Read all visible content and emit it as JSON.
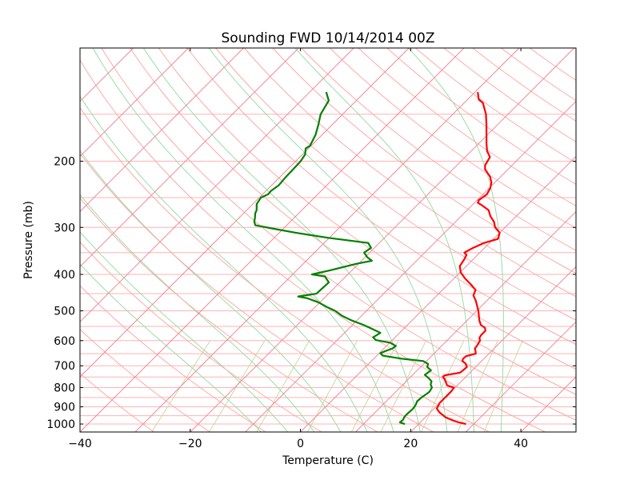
{
  "chart_data": {
    "type": "line",
    "subtype": "skew-t log-p sounding",
    "title": "Sounding FWD 10/14/2014 00Z",
    "xlabel": "Temperature (C)",
    "ylabel": "Pressure (mb)",
    "xlim": [
      -40,
      50
    ],
    "ylim": [
      1050,
      100
    ],
    "yscale": "log",
    "skew": 45,
    "grid": true,
    "x_ticks": [
      -40,
      -20,
      0,
      20,
      40
    ],
    "x_tick_labels": [
      "−40",
      "−20",
      "0",
      "20",
      "40"
    ],
    "y_ticks": [
      200,
      300,
      400,
      500,
      600,
      700,
      800,
      900,
      1000
    ],
    "y_tick_labels": [
      "200",
      "300",
      "400",
      "500",
      "600",
      "700",
      "800",
      "900",
      "1000"
    ],
    "background_lines": {
      "isobars_mb": [
        100,
        150,
        200,
        250,
        300,
        350,
        400,
        450,
        500,
        550,
        600,
        650,
        700,
        750,
        800,
        850,
        900,
        950,
        1000,
        1050
      ],
      "isotherms_c": [
        -140,
        -130,
        -120,
        -110,
        -100,
        -90,
        -80,
        -70,
        -60,
        -50,
        -40,
        -30,
        -20,
        -10,
        0,
        10,
        20,
        30,
        40,
        50
      ],
      "dry_adiabats_c": [
        -30,
        -20,
        -10,
        0,
        10,
        20,
        30,
        40,
        50,
        60,
        70,
        80,
        90,
        100,
        110,
        120,
        130,
        140,
        150,
        160,
        170,
        180,
        190,
        200
      ],
      "moist_adiabats_c": [
        -10,
        -5,
        0,
        5,
        10,
        15,
        20,
        25,
        30,
        35
      ],
      "mixing_ratio_gkg": [
        0.4,
        1,
        2,
        4,
        7,
        10,
        16,
        24,
        32
      ]
    },
    "colors": {
      "temperature": "#ff0000",
      "dewpoint": "#008000",
      "isobar": "#ffb3b3",
      "isotherm": "#f08898",
      "dry_adiabat": "#ffa8a8",
      "moist_adiabat": "#99ddaa",
      "mixing_ratio": "#ccd9a8"
    },
    "series": [
      {
        "key": "temperature",
        "color": "#ff0000",
        "points": [
          [
            1000,
            28.6
          ],
          [
            990,
            27.0
          ],
          [
            980,
            25.8
          ],
          [
            960,
            23.7
          ],
          [
            930,
            21.6
          ],
          [
            910,
            20.5
          ],
          [
            880,
            20.0
          ],
          [
            860,
            20.0
          ],
          [
            840,
            20.0
          ],
          [
            820,
            20.0
          ],
          [
            800,
            19.8
          ],
          [
            790,
            18.2
          ],
          [
            760,
            16.6
          ],
          [
            748,
            15.8
          ],
          [
            742,
            15.9
          ],
          [
            730,
            18.2
          ],
          [
            720,
            18.3
          ],
          [
            705,
            18.4
          ],
          [
            690,
            17.5
          ],
          [
            680,
            16.5
          ],
          [
            670,
            16.2
          ],
          [
            660,
            16.3
          ],
          [
            650,
            17.6
          ],
          [
            640,
            17.1
          ],
          [
            630,
            16.5
          ],
          [
            620,
            16.4
          ],
          [
            600,
            16.0
          ],
          [
            590,
            15.4
          ],
          [
            580,
            15.2
          ],
          [
            565,
            15.2
          ],
          [
            555,
            14.6
          ],
          [
            545,
            13.3
          ],
          [
            530,
            12.2
          ],
          [
            500,
            10.3
          ],
          [
            470,
            8.0
          ],
          [
            455,
            6.6
          ],
          [
            440,
            6.0
          ],
          [
            425,
            4.1
          ],
          [
            410,
            2.0
          ],
          [
            395,
            0.1
          ],
          [
            380,
            -1.2
          ],
          [
            365,
            -1.6
          ],
          [
            355,
            -2.0
          ],
          [
            350,
            -2.8
          ],
          [
            340,
            -2.1
          ],
          [
            330,
            -1.0
          ],
          [
            322,
            0.8
          ],
          [
            310,
            0.0
          ],
          [
            300,
            -1.8
          ],
          [
            290,
            -3.0
          ],
          [
            280,
            -4.7
          ],
          [
            270,
            -6.1
          ],
          [
            262,
            -8.2
          ],
          [
            258,
            -9.4
          ],
          [
            254,
            -9.7
          ],
          [
            245,
            -9.3
          ],
          [
            236,
            -9.8
          ],
          [
            228,
            -10.6
          ],
          [
            220,
            -11.9
          ],
          [
            210,
            -14.2
          ],
          [
            205,
            -14.9
          ],
          [
            195,
            -15.5
          ],
          [
            188,
            -17.1
          ],
          [
            180,
            -18.5
          ],
          [
            170,
            -20.2
          ],
          [
            160,
            -22.0
          ],
          [
            150,
            -24.0
          ],
          [
            140,
            -26.6
          ],
          [
            137,
            -28.0
          ],
          [
            131,
            -29.5
          ]
        ]
      },
      {
        "key": "dewpoint",
        "color": "#008000",
        "points": [
          [
            1000,
            17.5
          ],
          [
            990,
            16.3
          ],
          [
            975,
            16.4
          ],
          [
            955,
            16.1
          ],
          [
            935,
            16.1
          ],
          [
            910,
            16.2
          ],
          [
            890,
            16.0
          ],
          [
            870,
            15.6
          ],
          [
            850,
            15.7
          ],
          [
            830,
            16.0
          ],
          [
            820,
            16.1
          ],
          [
            800,
            15.8
          ],
          [
            785,
            15.0
          ],
          [
            770,
            14.6
          ],
          [
            755,
            13.5
          ],
          [
            740,
            12.2
          ],
          [
            733,
            12.3
          ],
          [
            720,
            12.5
          ],
          [
            705,
            11.2
          ],
          [
            692,
            10.8
          ],
          [
            680,
            9.4
          ],
          [
            670,
            5.0
          ],
          [
            658,
            1.1
          ],
          [
            648,
            0.2
          ],
          [
            640,
            0.7
          ],
          [
            630,
            1.5
          ],
          [
            620,
            1.7
          ],
          [
            608,
            0.1
          ],
          [
            598,
            -3.0
          ],
          [
            588,
            -4.0
          ],
          [
            572,
            -3.5
          ],
          [
            556,
            -6.1
          ],
          [
            545,
            -8.0
          ],
          [
            530,
            -11.0
          ],
          [
            515,
            -13.6
          ],
          [
            500,
            -15.7
          ],
          [
            490,
            -17.6
          ],
          [
            475,
            -20.2
          ],
          [
            463,
            -23.0
          ],
          [
            458,
            -25.0
          ],
          [
            450,
            -22.2
          ],
          [
            420,
            -22.0
          ],
          [
            405,
            -23.8
          ],
          [
            400,
            -26.5
          ],
          [
            390,
            -23.9
          ],
          [
            375,
            -20.4
          ],
          [
            368,
            -18.1
          ],
          [
            360,
            -19.6
          ],
          [
            350,
            -21.0
          ],
          [
            340,
            -20.6
          ],
          [
            330,
            -22.0
          ],
          [
            320,
            -30.0
          ],
          [
            310,
            -37.0
          ],
          [
            302,
            -42.0
          ],
          [
            296,
            -45.7
          ],
          [
            290,
            -46.5
          ],
          [
            282,
            -47.2
          ],
          [
            275,
            -47.9
          ],
          [
            270,
            -48.2
          ],
          [
            260,
            -49.3
          ],
          [
            250,
            -49.7
          ],
          [
            245,
            -49.0
          ],
          [
            240,
            -49.1
          ],
          [
            232,
            -48.7
          ],
          [
            222,
            -48.9
          ],
          [
            210,
            -49.0
          ],
          [
            200,
            -49.1
          ],
          [
            192,
            -49.5
          ],
          [
            185,
            -50.5
          ],
          [
            182,
            -50.2
          ],
          [
            170,
            -51.2
          ],
          [
            160,
            -52.5
          ],
          [
            150,
            -54.0
          ],
          [
            138,
            -55.0
          ],
          [
            131,
            -57.0
          ]
        ]
      }
    ]
  }
}
